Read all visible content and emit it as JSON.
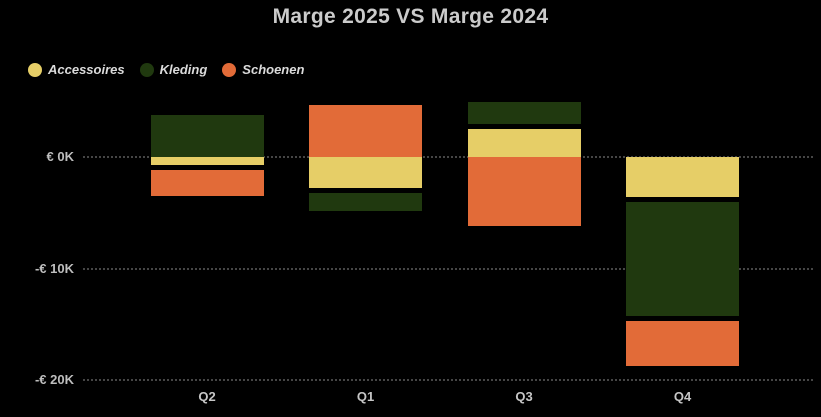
{
  "title": "Marge 2025 VS Marge 2024",
  "colors": {
    "background": "#000000",
    "title_text": "#CBCBCB",
    "axis_text": "#BEBEBE",
    "legend_text": "#DBDBDB",
    "gridline": "#464646",
    "accessoires": "#E6CE67",
    "kleding": "#20390F",
    "schoenen": "#E26B38"
  },
  "legend": {
    "items": [
      {
        "label": "Accessoires",
        "color": "#E6CE67"
      },
      {
        "label": "Kleding",
        "color": "#20390F"
      },
      {
        "label": "Schoenen",
        "color": "#E26B38"
      }
    ]
  },
  "chart_data": {
    "type": "bar",
    "stacked": true,
    "orientation": "vertical",
    "title": "Marge 2025 VS Marge 2024",
    "categories": [
      "Q2",
      "Q1",
      "Q3",
      "Q4"
    ],
    "series": [
      {
        "name": "Accessoires",
        "color": "#E6CE67",
        "values": [
          -0.9,
          -3.0,
          2.7,
          -3.8
        ]
      },
      {
        "name": "Kleding",
        "color": "#20390F",
        "values": [
          3.8,
          -1.8,
          2.2,
          -10.7
        ]
      },
      {
        "name": "Schoenen",
        "color": "#E26B38",
        "values": [
          -2.6,
          4.7,
          -6.2,
          -4.2
        ]
      }
    ],
    "stack_order_from_zero": [
      "Accessoires",
      "Kleding",
      "Schoenen"
    ],
    "value_unit": "thousand EUR (K)",
    "y_ticks": [
      {
        "label": "€ 0K",
        "value": 0
      },
      {
        "label": "-€ 10K",
        "value": -10
      },
      {
        "label": "-€ 20K",
        "value": -20
      }
    ],
    "ylim": [
      -21,
      6
    ],
    "grid": "dotted-horizontal",
    "legend_position": "top-left"
  }
}
